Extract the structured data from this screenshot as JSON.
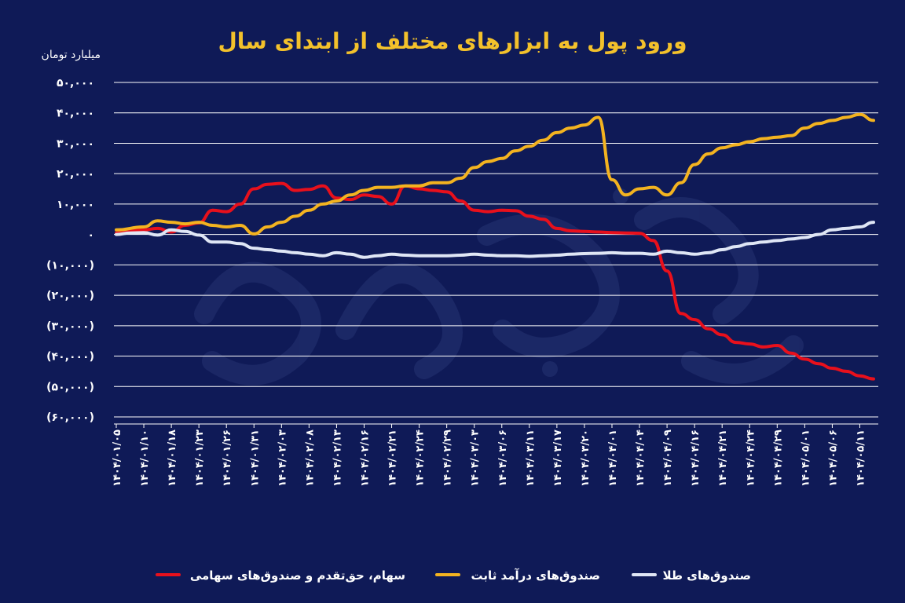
{
  "chart_data": {
    "type": "line",
    "title": "ورود پول به ابزارهای مختلف از ابتدای سال",
    "ylabel": "میلیارد تومان",
    "ylim": [
      -60000,
      50000
    ],
    "yticks": [
      50000,
      40000,
      30000,
      20000,
      10000,
      0,
      -10000,
      -20000,
      -30000,
      -40000,
      -50000,
      -60000
    ],
    "ytick_labels": [
      "۵۰,۰۰۰",
      "۴۰,۰۰۰",
      "۳۰,۰۰۰",
      "۲۰,۰۰۰",
      "۱۰,۰۰۰",
      "۰",
      "(۱۰,۰۰۰)",
      "(۲۰,۰۰۰)",
      "(۳۰,۰۰۰)",
      "(۴۰,۰۰۰)",
      "(۵۰,۰۰۰)",
      "(۶۰,۰۰۰)"
    ],
    "categories": [
      "۱۴۰۴/۰۱/۰۵",
      "۱۴۰۴/۰۱/۱۰",
      "۱۴۰۴/۰۱/۱۸",
      "۱۴۰۴/۰۱/۲۳",
      "۱۴۰۴/۰۱/۲۶",
      "۱۴۰۴/۰۱/۳۱",
      "۱۴۰۴/۰۲/۰۳",
      "۱۴۰۴/۰۲/۰۸",
      "۱۴۰۴/۰۲/۱۳",
      "۱۴۰۴/۰۲/۱۶",
      "۱۴۰۴/۰۲/۲۱",
      "۱۴۰۴/۰۲/۲۴",
      "۱۴۰۴/۰۲/۲۹",
      "۱۴۰۴/۰۳/۰۳",
      "۱۴۰۴/۰۳/۰۶",
      "۱۴۰۴/۰۳/۱۱",
      "۱۴۰۴/۰۳/۱۷",
      "۱۴۰۴/۰۳/۲۰",
      "۱۴۰۴/۰۴/۰۱",
      "۱۴۰۴/۰۴/۰۴",
      "۱۴۰۴/۰۴/۰۹",
      "۱۴۰۴/۰۴/۱۶",
      "۱۴۰۴/۰۴/۲۱",
      "۱۴۰۴/۰۴/۲۴",
      "۱۴۰۴/۰۴/۲۹",
      "۱۴۰۴/۰۵/۰۱",
      "۱۴۰۴/۰۵/۰۶",
      "۱۴۰۴/۰۵/۱۱"
    ],
    "series": [
      {
        "name": "سهام، حق‌تقدم و صندوق‌های سهامی",
        "color": "#e8101c",
        "values": [
          [
            0,
            500
          ],
          [
            1,
            1500
          ],
          [
            1.5,
            2000
          ],
          [
            2,
            800
          ],
          [
            2.5,
            3000
          ],
          [
            3,
            3800
          ],
          [
            3.5,
            8000
          ],
          [
            4,
            7500
          ],
          [
            4.5,
            10000
          ],
          [
            5,
            15000
          ],
          [
            5.5,
            16500
          ],
          [
            6,
            16800
          ],
          [
            6.5,
            14500
          ],
          [
            7,
            14800
          ],
          [
            7.5,
            16000
          ],
          [
            8,
            12000
          ],
          [
            8.5,
            11500
          ],
          [
            9,
            13000
          ],
          [
            9.5,
            12500
          ],
          [
            10,
            10000
          ],
          [
            10.5,
            16000
          ],
          [
            11,
            15000
          ],
          [
            11.5,
            14500
          ],
          [
            12,
            14000
          ],
          [
            12.5,
            11000
          ],
          [
            13,
            8000
          ],
          [
            13.5,
            7500
          ],
          [
            14,
            8000
          ],
          [
            14.5,
            7800
          ],
          [
            15,
            6000
          ],
          [
            15.5,
            5000
          ],
          [
            16,
            2000
          ],
          [
            16.5,
            1200
          ],
          [
            17,
            1000
          ],
          [
            17.5,
            800
          ],
          [
            18,
            600
          ],
          [
            18.5,
            500
          ],
          [
            19,
            400
          ],
          [
            19.5,
            -2000
          ],
          [
            20,
            -12000
          ],
          [
            20.5,
            -26000
          ],
          [
            21,
            -28000
          ],
          [
            21.5,
            -31000
          ],
          [
            22,
            -33000
          ],
          [
            22.5,
            -35500
          ],
          [
            23,
            -36000
          ],
          [
            23.5,
            -37000
          ],
          [
            24,
            -36500
          ],
          [
            24.5,
            -39000
          ],
          [
            25,
            -41000
          ],
          [
            25.5,
            -42500
          ],
          [
            26,
            -44000
          ],
          [
            26.5,
            -45000
          ],
          [
            27,
            -46500
          ],
          [
            27.5,
            -47500
          ]
        ]
      },
      {
        "name": "صندوق‌های درآمد ثابت",
        "color": "#f3b320",
        "values": [
          [
            0,
            1500
          ],
          [
            1,
            2500
          ],
          [
            1.5,
            4500
          ],
          [
            2,
            4000
          ],
          [
            2.5,
            3500
          ],
          [
            3,
            4000
          ],
          [
            3.5,
            3000
          ],
          [
            4,
            2500
          ],
          [
            4.5,
            3000
          ],
          [
            5,
            200
          ],
          [
            5.5,
            2500
          ],
          [
            6,
            4000
          ],
          [
            6.5,
            6000
          ],
          [
            7,
            8000
          ],
          [
            7.5,
            10000
          ],
          [
            8,
            11000
          ],
          [
            8.5,
            13000
          ],
          [
            9,
            14500
          ],
          [
            9.5,
            15500
          ],
          [
            10,
            15500
          ],
          [
            10.5,
            16000
          ],
          [
            11,
            16000
          ],
          [
            11.5,
            17000
          ],
          [
            12,
            17000
          ],
          [
            12.5,
            18500
          ],
          [
            13,
            22000
          ],
          [
            13.5,
            24000
          ],
          [
            14,
            25000
          ],
          [
            14.5,
            27500
          ],
          [
            15,
            29000
          ],
          [
            15.5,
            31000
          ],
          [
            16,
            33500
          ],
          [
            16.5,
            35000
          ],
          [
            17,
            36000
          ],
          [
            17.5,
            38500
          ],
          [
            18,
            18000
          ],
          [
            18.5,
            13000
          ],
          [
            19,
            15000
          ],
          [
            19.5,
            15500
          ],
          [
            20,
            13000
          ],
          [
            20.5,
            17000
          ],
          [
            21,
            23000
          ],
          [
            21.5,
            26500
          ],
          [
            22,
            28500
          ],
          [
            22.5,
            29500
          ],
          [
            23,
            30500
          ],
          [
            23.5,
            31500
          ],
          [
            24,
            32000
          ],
          [
            24.5,
            32500
          ],
          [
            25,
            35000
          ],
          [
            25.5,
            36500
          ],
          [
            26,
            37500
          ],
          [
            26.5,
            38500
          ],
          [
            27,
            39500
          ],
          [
            27.5,
            37500
          ]
        ]
      },
      {
        "name": "صندوق‌های طلا",
        "color": "#dfe6f5",
        "values": [
          [
            0,
            0
          ],
          [
            0.5,
            500
          ],
          [
            1,
            600
          ],
          [
            1.5,
            -200
          ],
          [
            2,
            1500
          ],
          [
            2.5,
            1000
          ],
          [
            3,
            -200
          ],
          [
            3.5,
            -2500
          ],
          [
            4,
            -2500
          ],
          [
            4.5,
            -3000
          ],
          [
            5,
            -4500
          ],
          [
            5.5,
            -5000
          ],
          [
            6,
            -5500
          ],
          [
            6.5,
            -6000
          ],
          [
            7,
            -6500
          ],
          [
            7.5,
            -7000
          ],
          [
            8,
            -6000
          ],
          [
            8.5,
            -6500
          ],
          [
            9,
            -7500
          ],
          [
            9.5,
            -7000
          ],
          [
            10,
            -6500
          ],
          [
            10.5,
            -6800
          ],
          [
            11,
            -7000
          ],
          [
            11.5,
            -7000
          ],
          [
            12,
            -7000
          ],
          [
            12.5,
            -6800
          ],
          [
            13,
            -6500
          ],
          [
            13.5,
            -6800
          ],
          [
            14,
            -7000
          ],
          [
            14.5,
            -7000
          ],
          [
            15,
            -7200
          ],
          [
            15.5,
            -7000
          ],
          [
            16,
            -6800
          ],
          [
            16.5,
            -6500
          ],
          [
            17,
            -6300
          ],
          [
            17.5,
            -6200
          ],
          [
            18,
            -6000
          ],
          [
            18.5,
            -6200
          ],
          [
            19,
            -6200
          ],
          [
            19.5,
            -6500
          ],
          [
            20,
            -5500
          ],
          [
            20.5,
            -6000
          ],
          [
            21,
            -6500
          ],
          [
            21.5,
            -6000
          ],
          [
            22,
            -5000
          ],
          [
            22.5,
            -4000
          ],
          [
            23,
            -3000
          ],
          [
            23.5,
            -2500
          ],
          [
            24,
            -2000
          ],
          [
            24.5,
            -1500
          ],
          [
            25,
            -1000
          ],
          [
            25.5,
            0
          ],
          [
            26,
            1500
          ],
          [
            26.5,
            2000
          ],
          [
            27,
            2500
          ],
          [
            27.5,
            4000
          ]
        ]
      }
    ],
    "legend_position": "bottom",
    "grid": true
  }
}
